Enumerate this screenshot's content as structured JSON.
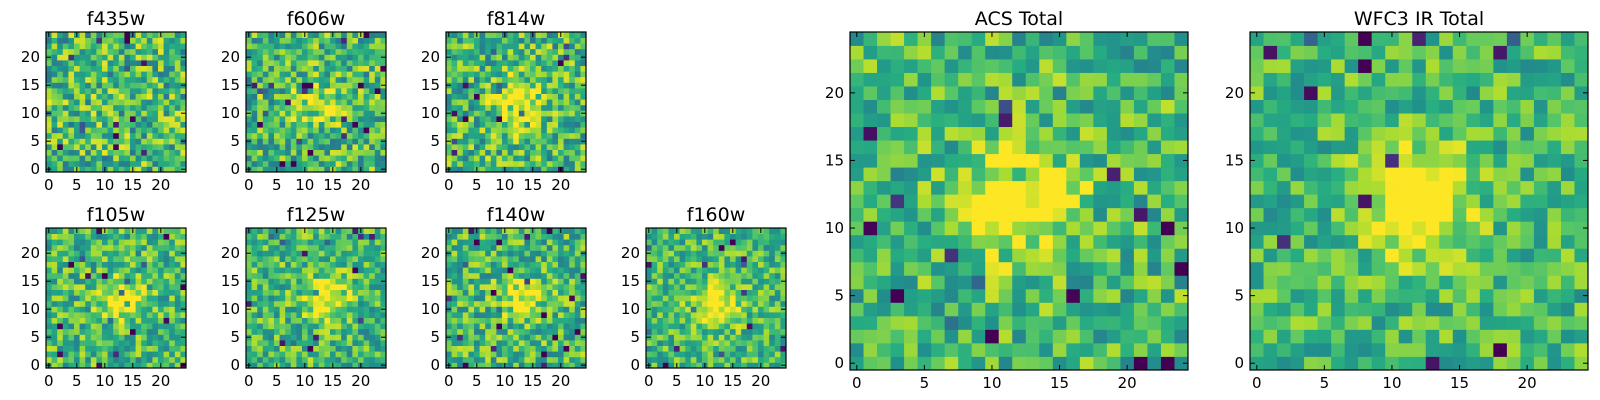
{
  "chart_data": [
    {
      "type": "heatmap",
      "title": "f435w",
      "x_ticks": [
        "0",
        "5",
        "10",
        "15",
        "20"
      ],
      "y_ticks": [
        "0",
        "5",
        "10",
        "15",
        "20"
      ],
      "xlim": [
        0,
        25
      ],
      "ylim": [
        0,
        25
      ],
      "grid_size": 25,
      "colormap": "viridis",
      "source_peak": {
        "x": 12,
        "y": 12,
        "strength": 0.05
      },
      "noise_level": 0.42,
      "seed": 11
    },
    {
      "type": "heatmap",
      "title": "f606w",
      "x_ticks": [
        "0",
        "5",
        "10",
        "15",
        "20"
      ],
      "y_ticks": [
        "0",
        "5",
        "10",
        "15",
        "20"
      ],
      "xlim": [
        0,
        25
      ],
      "ylim": [
        0,
        25
      ],
      "grid_size": 25,
      "colormap": "viridis",
      "source_peak": {
        "x": 12,
        "y": 12,
        "strength": 0.25
      },
      "noise_level": 0.4,
      "seed": 23
    },
    {
      "type": "heatmap",
      "title": "f814w",
      "x_ticks": [
        "0",
        "5",
        "10",
        "15",
        "20"
      ],
      "y_ticks": [
        "0",
        "5",
        "10",
        "15",
        "20"
      ],
      "xlim": [
        0,
        25
      ],
      "ylim": [
        0,
        25
      ],
      "grid_size": 25,
      "colormap": "viridis",
      "source_peak": {
        "x": 12,
        "y": 12,
        "strength": 0.45
      },
      "noise_level": 0.4,
      "seed": 37
    },
    {
      "type": "heatmap",
      "title": "f105w",
      "x_ticks": [
        "0",
        "5",
        "10",
        "15",
        "20"
      ],
      "y_ticks": [
        "0",
        "5",
        "10",
        "15",
        "20"
      ],
      "xlim": [
        0,
        25
      ],
      "ylim": [
        0,
        25
      ],
      "grid_size": 25,
      "colormap": "viridis",
      "source_peak": {
        "x": 13,
        "y": 12,
        "strength": 0.35
      },
      "noise_level": 0.35,
      "seed": 41
    },
    {
      "type": "heatmap",
      "title": "f125w",
      "x_ticks": [
        "0",
        "5",
        "10",
        "15",
        "20"
      ],
      "y_ticks": [
        "0",
        "5",
        "10",
        "15",
        "20"
      ],
      "xlim": [
        0,
        25
      ],
      "ylim": [
        0,
        25
      ],
      "grid_size": 25,
      "colormap": "viridis",
      "source_peak": {
        "x": 14,
        "y": 12,
        "strength": 0.4
      },
      "noise_level": 0.35,
      "seed": 53
    },
    {
      "type": "heatmap",
      "title": "f140w",
      "x_ticks": [
        "0",
        "5",
        "10",
        "15",
        "20"
      ],
      "y_ticks": [
        "0",
        "5",
        "10",
        "15",
        "20"
      ],
      "xlim": [
        0,
        25
      ],
      "ylim": [
        0,
        25
      ],
      "grid_size": 25,
      "colormap": "viridis",
      "source_peak": {
        "x": 13,
        "y": 12,
        "strength": 0.3
      },
      "noise_level": 0.36,
      "seed": 67
    },
    {
      "type": "heatmap",
      "title": "f160w",
      "x_ticks": [
        "0",
        "5",
        "10",
        "15",
        "20"
      ],
      "y_ticks": [
        "0",
        "5",
        "10",
        "15",
        "20"
      ],
      "xlim": [
        0,
        25
      ],
      "ylim": [
        0,
        25
      ],
      "grid_size": 25,
      "colormap": "viridis",
      "source_peak": {
        "x": 12,
        "y": 11,
        "strength": 0.45
      },
      "noise_level": 0.32,
      "seed": 79
    },
    {
      "type": "heatmap",
      "title": "ACS Total",
      "x_ticks": [
        "0",
        "5",
        "10",
        "15",
        "20"
      ],
      "y_ticks": [
        "0",
        "5",
        "10",
        "15",
        "20"
      ],
      "xlim": [
        0,
        25
      ],
      "ylim": [
        0,
        25
      ],
      "grid_size": 25,
      "colormap": "viridis",
      "source_peak": {
        "x": 12,
        "y": 12,
        "strength": 0.5
      },
      "noise_level": 0.34,
      "seed": 83
    },
    {
      "type": "heatmap",
      "title": "WFC3 IR Total",
      "x_ticks": [
        "0",
        "5",
        "10",
        "15",
        "20"
      ],
      "y_ticks": [
        "0",
        "5",
        "10",
        "15",
        "20"
      ],
      "xlim": [
        0,
        25
      ],
      "ylim": [
        0,
        25
      ],
      "grid_size": 25,
      "colormap": "viridis",
      "source_peak": {
        "x": 12,
        "y": 12,
        "strength": 0.55
      },
      "noise_level": 0.3,
      "seed": 97
    }
  ]
}
